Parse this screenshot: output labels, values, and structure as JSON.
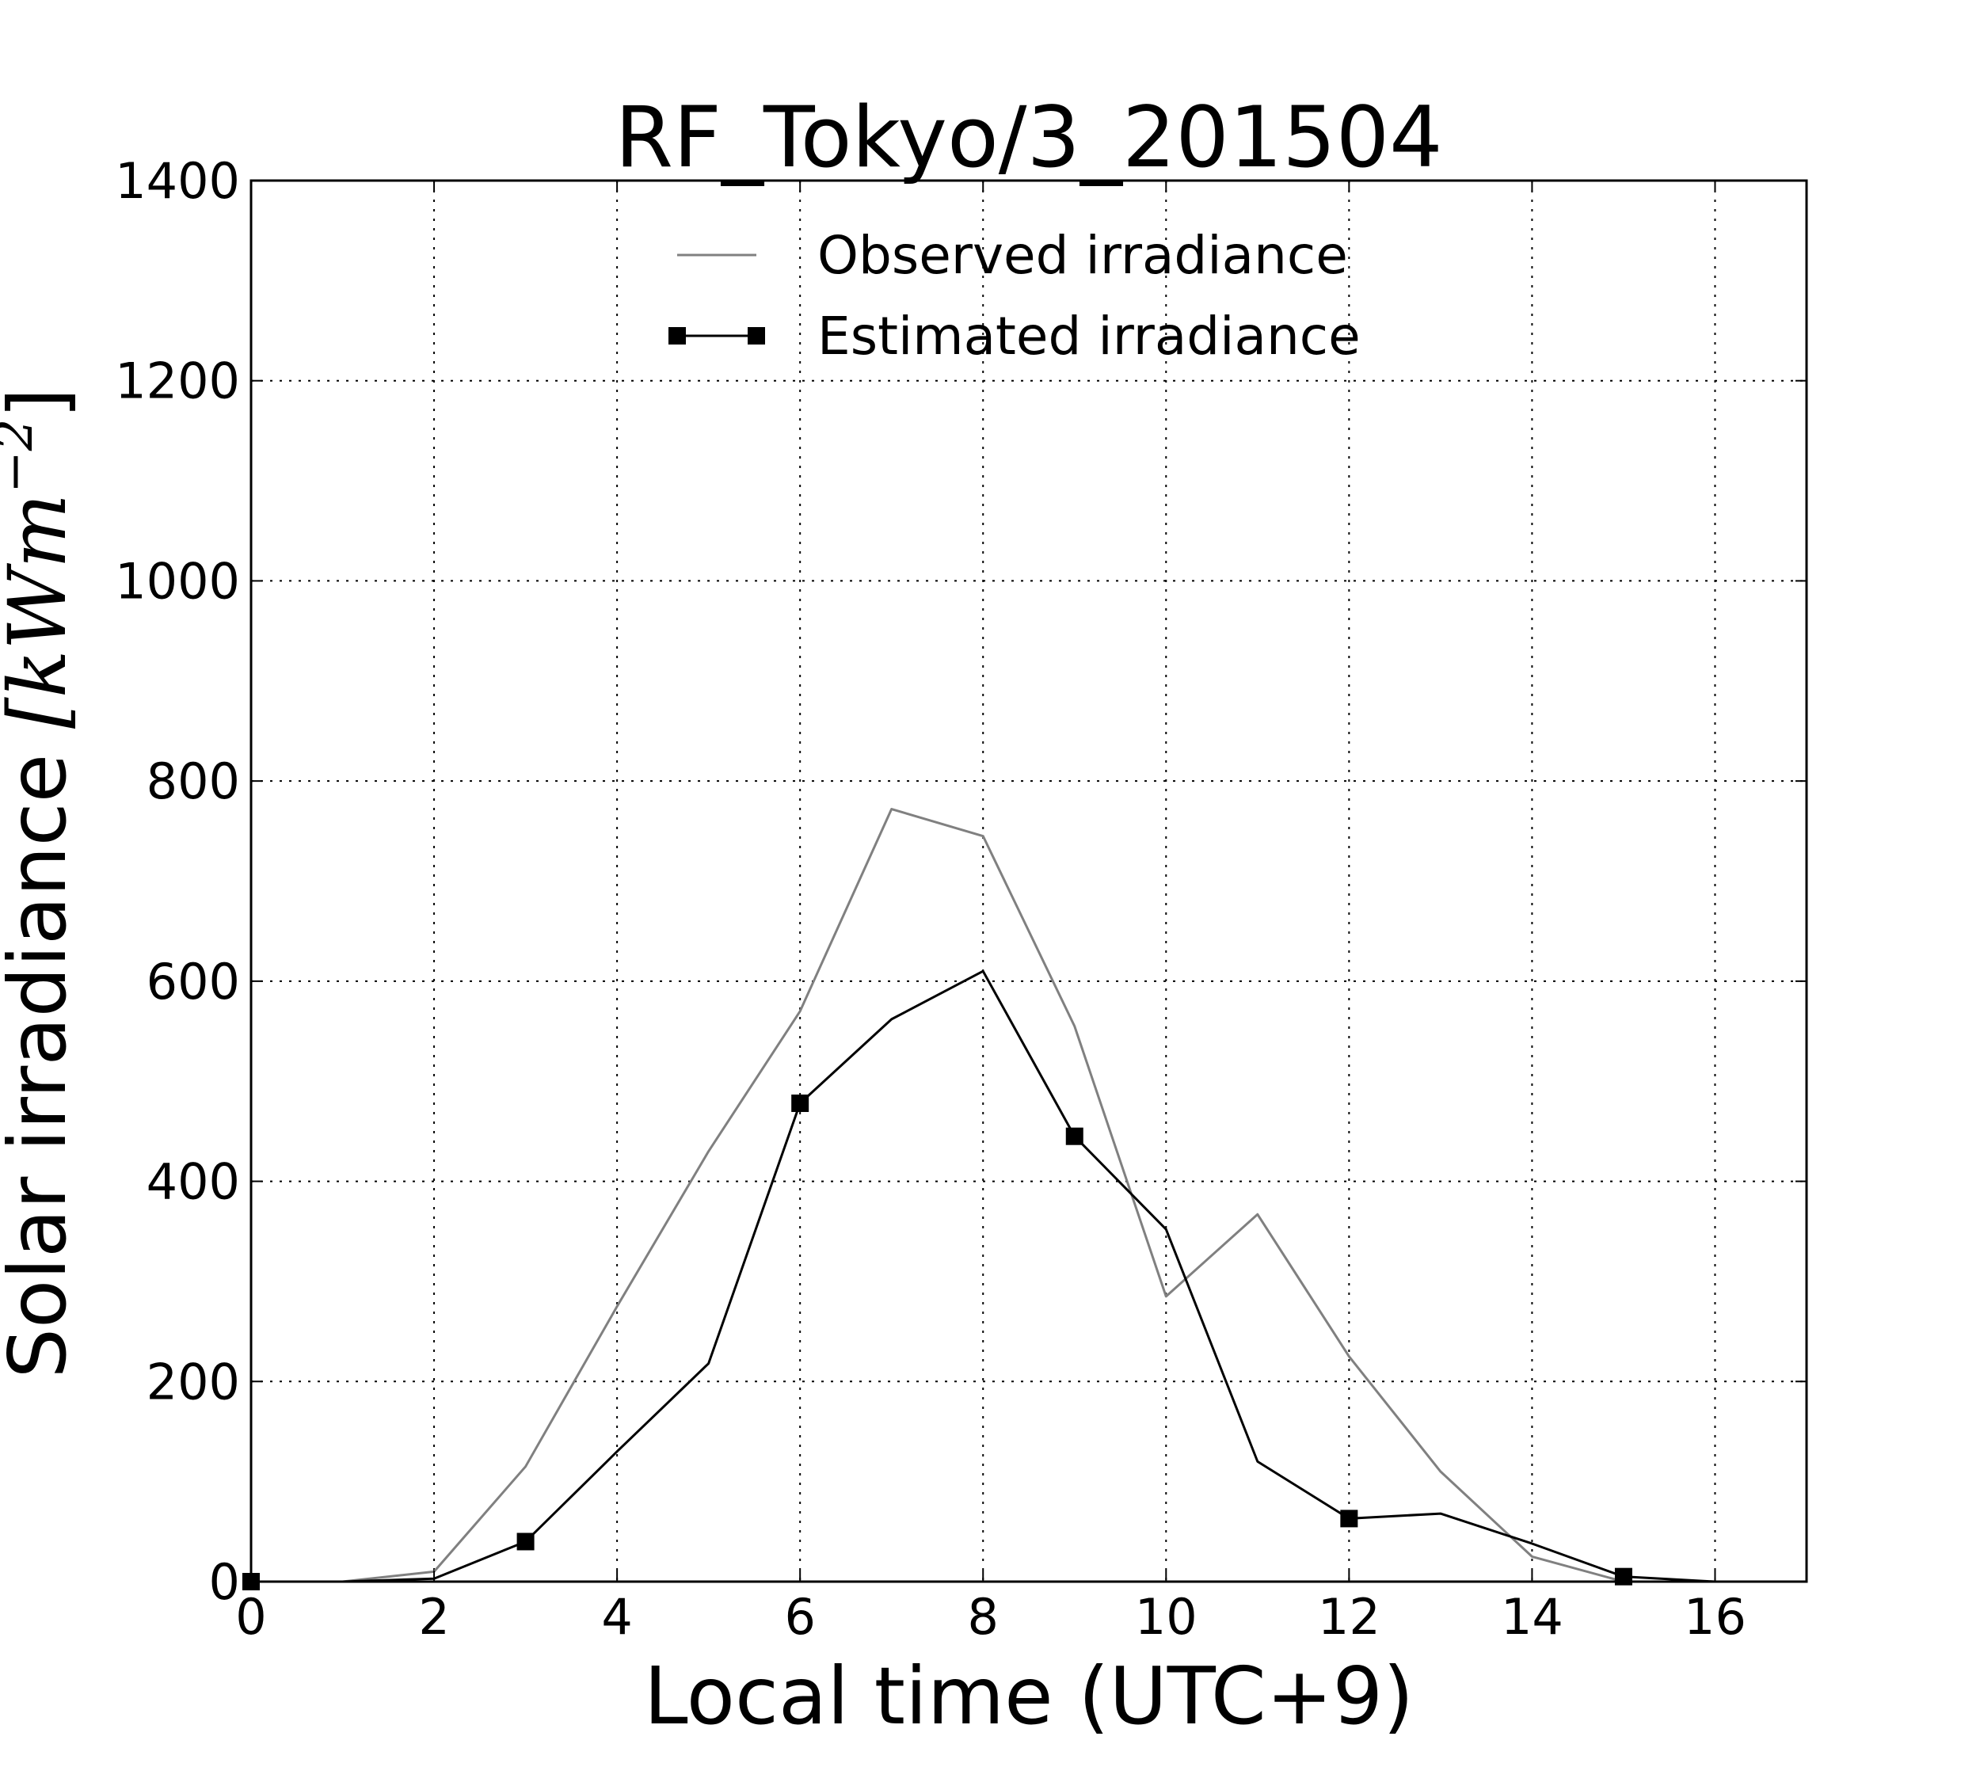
{
  "chart_data": {
    "type": "line",
    "title": "RF_Tokyo/3_201504",
    "xlabel": "Local time (UTC+9)",
    "ylabel": "Solar irradiance [kWm⁻²]",
    "ylabel_text": "Solar irradiance ",
    "ylabel_unit": "[kWm",
    "ylabel_exp": "−2",
    "ylabel_close": "]",
    "xlim": [
      0,
      17
    ],
    "ylim": [
      0,
      1400
    ],
    "xticks": [
      0,
      2,
      4,
      6,
      8,
      10,
      12,
      14,
      16
    ],
    "yticks": [
      0,
      200,
      400,
      600,
      800,
      1000,
      1200,
      1400
    ],
    "grid": true,
    "legend_position": "top-center",
    "series": [
      {
        "name": "Observed irradiance",
        "color": "#808080",
        "marker": "none",
        "x": [
          0,
          1,
          2,
          3,
          4,
          5,
          6,
          7,
          8,
          9,
          10,
          11,
          12,
          13,
          14,
          15,
          16,
          17
        ],
        "values": [
          0,
          0,
          10,
          115,
          275,
          430,
          570,
          772,
          745,
          555,
          285,
          367,
          225,
          110,
          25,
          0,
          0,
          0
        ]
      },
      {
        "name": "Estimated irradiance",
        "color": "#000000",
        "marker": "square",
        "marker_every": 3,
        "x": [
          0,
          1,
          2,
          3,
          4,
          5,
          6,
          7,
          8,
          9,
          10,
          11,
          12,
          13,
          14,
          15,
          16,
          17
        ],
        "values": [
          0,
          0,
          3,
          40,
          130,
          218,
          478,
          562,
          610,
          445,
          352,
          120,
          63,
          68,
          38,
          5,
          0,
          0
        ]
      }
    ]
  }
}
